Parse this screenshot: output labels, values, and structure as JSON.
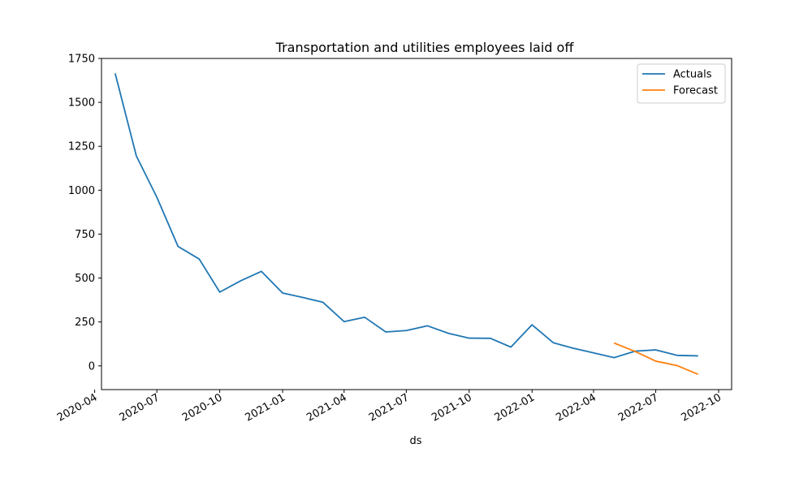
{
  "chart_data": {
    "type": "line",
    "title": "Transportation and utilities employees laid off",
    "xlabel": "ds",
    "ylabel": "",
    "ylim": [
      -135,
      1750
    ],
    "xlim": [
      "2020-04-11",
      "2022-10-20"
    ],
    "y_ticks": [
      0,
      250,
      500,
      750,
      1000,
      1250,
      1500,
      1750
    ],
    "x_ticks": [
      "2020-04",
      "2020-07",
      "2020-10",
      "2021-01",
      "2021-04",
      "2021-07",
      "2021-10",
      "2022-01",
      "2022-04",
      "2022-07",
      "2022-10"
    ],
    "grid": false,
    "legend_position": "top-right",
    "series": [
      {
        "name": "Actuals",
        "color": "#1f77b4",
        "points": [
          {
            "x": "2020-05-01",
            "y": 1665
          },
          {
            "x": "2020-06-01",
            "y": 1195
          },
          {
            "x": "2020-07-01",
            "y": 960
          },
          {
            "x": "2020-08-01",
            "y": 680
          },
          {
            "x": "2020-09-01",
            "y": 608
          },
          {
            "x": "2020-10-01",
            "y": 420
          },
          {
            "x": "2020-11-01",
            "y": 485
          },
          {
            "x": "2020-12-01",
            "y": 538
          },
          {
            "x": "2021-01-01",
            "y": 415
          },
          {
            "x": "2021-02-01",
            "y": 388
          },
          {
            "x": "2021-03-01",
            "y": 362
          },
          {
            "x": "2021-04-01",
            "y": 252
          },
          {
            "x": "2021-05-01",
            "y": 277
          },
          {
            "x": "2021-06-01",
            "y": 193
          },
          {
            "x": "2021-07-01",
            "y": 201
          },
          {
            "x": "2021-08-01",
            "y": 228
          },
          {
            "x": "2021-09-01",
            "y": 185
          },
          {
            "x": "2021-10-01",
            "y": 158
          },
          {
            "x": "2021-11-01",
            "y": 157
          },
          {
            "x": "2021-12-01",
            "y": 107
          },
          {
            "x": "2022-01-01",
            "y": 234
          },
          {
            "x": "2022-02-01",
            "y": 132
          },
          {
            "x": "2022-03-01",
            "y": 102
          },
          {
            "x": "2022-04-01",
            "y": 74
          },
          {
            "x": "2022-05-01",
            "y": 47
          },
          {
            "x": "2022-06-01",
            "y": 84
          },
          {
            "x": "2022-07-01",
            "y": 91
          },
          {
            "x": "2022-08-01",
            "y": 60
          },
          {
            "x": "2022-09-01",
            "y": 57
          }
        ]
      },
      {
        "name": "Forecast",
        "color": "#ff7f0e",
        "points": [
          {
            "x": "2022-05-01",
            "y": 130
          },
          {
            "x": "2022-06-01",
            "y": 82
          },
          {
            "x": "2022-07-01",
            "y": 27
          },
          {
            "x": "2022-08-01",
            "y": 2
          },
          {
            "x": "2022-09-01",
            "y": -48
          }
        ]
      }
    ]
  }
}
